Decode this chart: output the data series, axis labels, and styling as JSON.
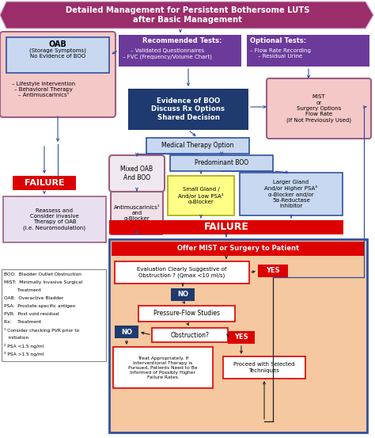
{
  "title_text": "Detailed Management for Persistent Bothersome LUTS\nafter Basic Management",
  "title_bg": "#9B2D6B",
  "title_fg": "white",
  "rec_tests_title": "Recommended Tests:",
  "rec_tests_items": [
    "– Validated Questionnaires",
    "– FVC (Frequency/Volume Chart)"
  ],
  "rec_tests_bg": "#6B3A9B",
  "rec_tests_fg": "white",
  "opt_tests_title": "Optional Tests:",
  "opt_tests_items": [
    "– Flow Rate Recording",
    "– Residual Urine"
  ],
  "opt_tests_bg": "#6B3A9B",
  "opt_tests_fg": "white",
  "oab_title": "OAB",
  "oab_sub": "(Storage Symptoms)\nNo Evidence of BOO",
  "oab_outer_bg": "#F5C8C8",
  "oab_outer_border": "#9B6080",
  "oab_inner_bg": "#C8D8F0",
  "oab_inner_border": "#3050A0",
  "oab_treat_items": [
    "– Lifestyle Intervention",
    "– Behavioral Therapy",
    "– Antimuscarinics¹"
  ],
  "evidence_boo_text": "Evidence of BOO\nDiscuss Rx Options\nShared Decision",
  "evidence_boo_bg": "#1E3A6E",
  "evidence_boo_fg": "white",
  "mist_text": "MIST\nor\nSurgery Options\nFlow Rate\n(If Not Previously Used)",
  "mist_bg": "#F5C8C8",
  "mist_border": "#9B6080",
  "med_therapy_text": "Medical Therapy Option",
  "med_therapy_bg": "#C8D8F0",
  "med_therapy_border": "#3050A0",
  "failure1_text": "FAILURE",
  "failure1_bg": "#DD0000",
  "reassess_text": "Reassess and\nConsider Invasive\nTherapy of OAB\n(i.e. Neuromodulation)",
  "reassess_bg": "#E8E0F0",
  "reassess_border": "#9B6080",
  "mixed_oab_text": "Mixed OAB\nAnd BOO",
  "mixed_oab_bg": "#F0E8F0",
  "mixed_oab_border": "#9B6080",
  "pred_boo_text": "Predominant BOO",
  "pred_boo_bg": "#C8D8F0",
  "pred_boo_border": "#3050A0",
  "antimus_text": "Antimuscarinics¹\nand\nα-Blocker",
  "antimus_bg": "#F0E0E8",
  "antimus_border": "#9B6080",
  "small_gland_text": "Small Gland /\nAnd/or Low PSA²\nα-Blocker",
  "small_gland_bg": "#FFFF88",
  "small_gland_border": "#AAAA00",
  "larger_gland_text": "Larger Gland\nAnd/or Higher PSA³\nα-Blocker and/or\n5α-Reductase\nInhibitor",
  "larger_gland_bg": "#C8D8F0",
  "larger_gland_border": "#3050A0",
  "failure2_text": "FAILURE",
  "failure2_bg": "#DD0000",
  "offer_mist_text": "Offer MIST or Surgery to Patient",
  "offer_mist_bg": "#DD0000",
  "outer_box_bg": "#F5C8A0",
  "outer_box_border": "#3050A0",
  "eval_text": "Evaluation Clearly Suggestive of\nObstruction ? (Qmax <10 ml/s)",
  "eval_bg": "white",
  "eval_border": "#DD0000",
  "yes_bg": "#DD0000",
  "yes_fg": "white",
  "no_bg": "#1E3A6E",
  "no_fg": "white",
  "pfs_text": "Pressure-Flow Studies",
  "obstruction_text": "Obstruction?",
  "box_bg": "white",
  "box_border": "#DD0000",
  "treat_text": "Treat Appropriately. If\nInterventional Therapy is\nPursued, Patients Need to Be\nInformed of Possibly Higher\nFailure Rates.",
  "proceed_text": "Proceed with Selected\nTechniques",
  "legend_lines": [
    "BOO:  Bladder Outlet Obstruction",
    "MIST:  Minimally Invasive Surgical",
    "         Treatment",
    "OAB:  Overactive Bladder",
    "PSA:  Prostate-specific antigen",
    "PVR:  Post void residual",
    "Rx:    Treatment",
    "¹ Consider checking PVR prior to",
    "   initiation",
    "² PSA <1.5 ng/ml",
    "³ PSA >1.5 ng/ml"
  ],
  "arrow_blue": "#3050A0",
  "arrow_black": "#222222"
}
